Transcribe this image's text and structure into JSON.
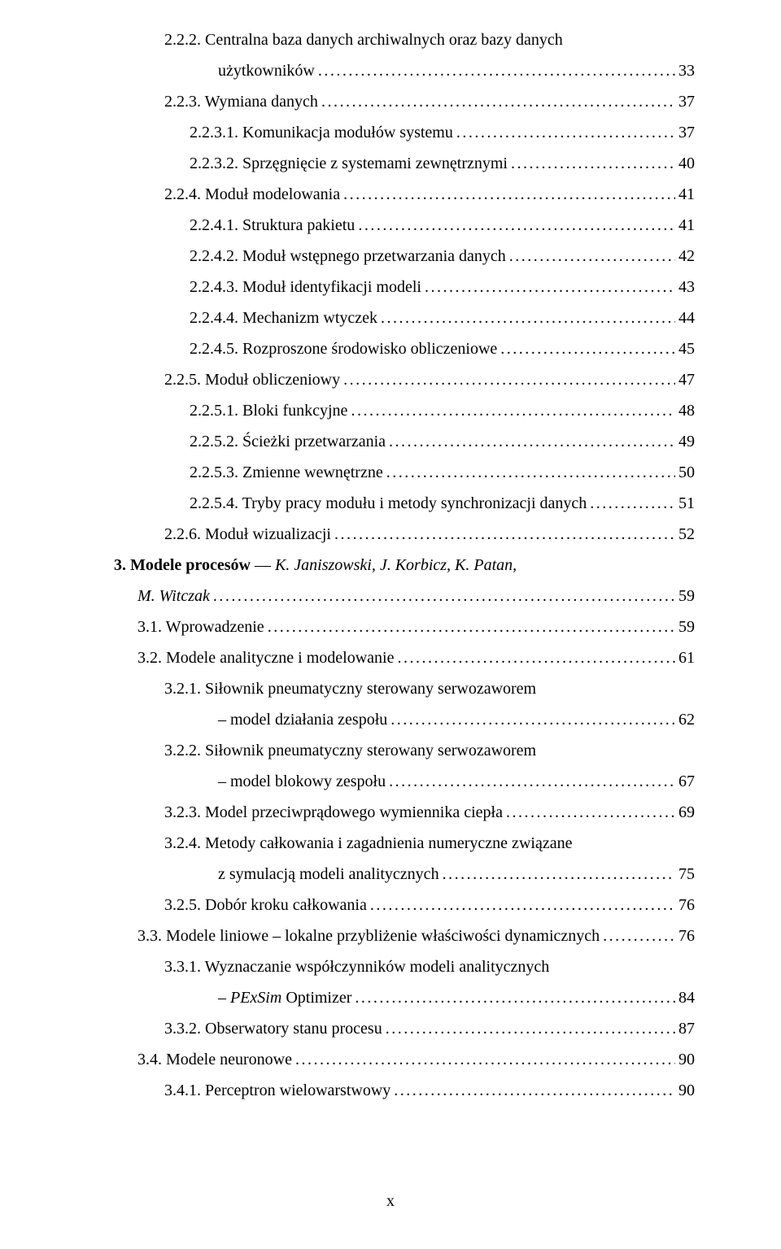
{
  "footer": "x",
  "entries": [
    {
      "indent": 2,
      "label": "2.2.2. Centralna baza danych archiwalnych oraz bazy danych",
      "hasPage": false
    },
    {
      "indent": 2,
      "cont": true,
      "label": "użytkowników",
      "page": "33"
    },
    {
      "indent": 2,
      "label": "2.2.3. Wymiana danych",
      "page": "37"
    },
    {
      "indent": 3,
      "label": "2.2.3.1. Komunikacja modułów systemu",
      "page": "37"
    },
    {
      "indent": 3,
      "label": "2.2.3.2. Sprzęgnięcie z systemami zewnętrznymi",
      "page": "40"
    },
    {
      "indent": 2,
      "label": "2.2.4. Moduł modelowania",
      "page": "41"
    },
    {
      "indent": 3,
      "label": "2.2.4.1. Struktura pakietu",
      "page": "41"
    },
    {
      "indent": 3,
      "label": "2.2.4.2. Moduł wstępnego przetwarzania danych",
      "page": "42"
    },
    {
      "indent": 3,
      "label": "2.2.4.3. Moduł identyfikacji modeli",
      "page": "43"
    },
    {
      "indent": 3,
      "label": "2.2.4.4. Mechanizm wtyczek",
      "page": "44"
    },
    {
      "indent": 3,
      "label": "2.2.4.5. Rozproszone środowisko obliczeniowe",
      "page": "45"
    },
    {
      "indent": 2,
      "label": "2.2.5. Moduł obliczeniowy",
      "page": "47"
    },
    {
      "indent": 3,
      "label": "2.2.5.1. Bloki funkcyjne",
      "page": "48"
    },
    {
      "indent": 3,
      "label": "2.2.5.2. Ścieżki przetwarzania",
      "page": "49"
    },
    {
      "indent": 3,
      "label": "2.2.5.3. Zmienne wewnętrzne",
      "page": "50"
    },
    {
      "indent": 3,
      "label": "2.2.5.4. Tryby pracy modułu i metody synchronizacji danych",
      "page": "51"
    },
    {
      "indent": 2,
      "label": "2.2.6. Moduł wizualizacji",
      "page": "52"
    },
    {
      "indent": 0,
      "pieces": [
        {
          "text": "3. Modele procesów",
          "bold": true
        },
        {
          "text": " — ",
          "bold": false
        },
        {
          "text": "K. Janiszowski, J. Korbicz, K. Patan,",
          "italic": true
        }
      ],
      "hasPage": false
    },
    {
      "indent": 0,
      "indentPx": 29,
      "pieces": [
        {
          "text": "M. Witczak",
          "italic": true
        }
      ],
      "page": "59"
    },
    {
      "indent": 1,
      "label": "3.1. Wprowadzenie",
      "page": "59"
    },
    {
      "indent": 1,
      "label": "3.2. Modele analityczne i modelowanie",
      "page": "61"
    },
    {
      "indent": 2,
      "label": "3.2.1. Siłownik pneumatyczny sterowany serwozaworem",
      "hasPage": false
    },
    {
      "indent": 2,
      "cont": true,
      "label": "– model działania zespołu",
      "page": "62"
    },
    {
      "indent": 2,
      "label": "3.2.2. Siłownik pneumatyczny sterowany serwozaworem",
      "hasPage": false
    },
    {
      "indent": 2,
      "cont": true,
      "label": "– model blokowy zespołu",
      "page": "67"
    },
    {
      "indent": 2,
      "label": "3.2.3. Model przeciwprądowego wymiennika ciepła",
      "page": "69"
    },
    {
      "indent": 2,
      "label": "3.2.4. Metody całkowania i zagadnienia numeryczne związane",
      "hasPage": false
    },
    {
      "indent": 2,
      "cont": true,
      "label": "z symulacją modeli analitycznych",
      "page": "75"
    },
    {
      "indent": 2,
      "label": "3.2.5. Dobór kroku całkowania",
      "page": "76"
    },
    {
      "indent": 1,
      "label": "3.3. Modele liniowe – lokalne przybliżenie właściwości dynamicznych",
      "page": "76"
    },
    {
      "indent": 2,
      "label": "3.3.1. Wyznaczanie współczynników modeli analitycznych",
      "hasPage": false
    },
    {
      "indent": 2,
      "cont": true,
      "pieces": [
        {
          "text": "– "
        },
        {
          "text": "PExSim",
          "italic": true
        },
        {
          "text": " Optimizer"
        }
      ],
      "page": "84"
    },
    {
      "indent": 2,
      "label": "3.3.2. Obserwatory stanu procesu",
      "page": "87"
    },
    {
      "indent": 1,
      "label": "3.4. Modele neuronowe",
      "page": "90"
    },
    {
      "indent": 2,
      "label": "3.4.1. Perceptron wielowarstwowy",
      "page": "90"
    }
  ]
}
